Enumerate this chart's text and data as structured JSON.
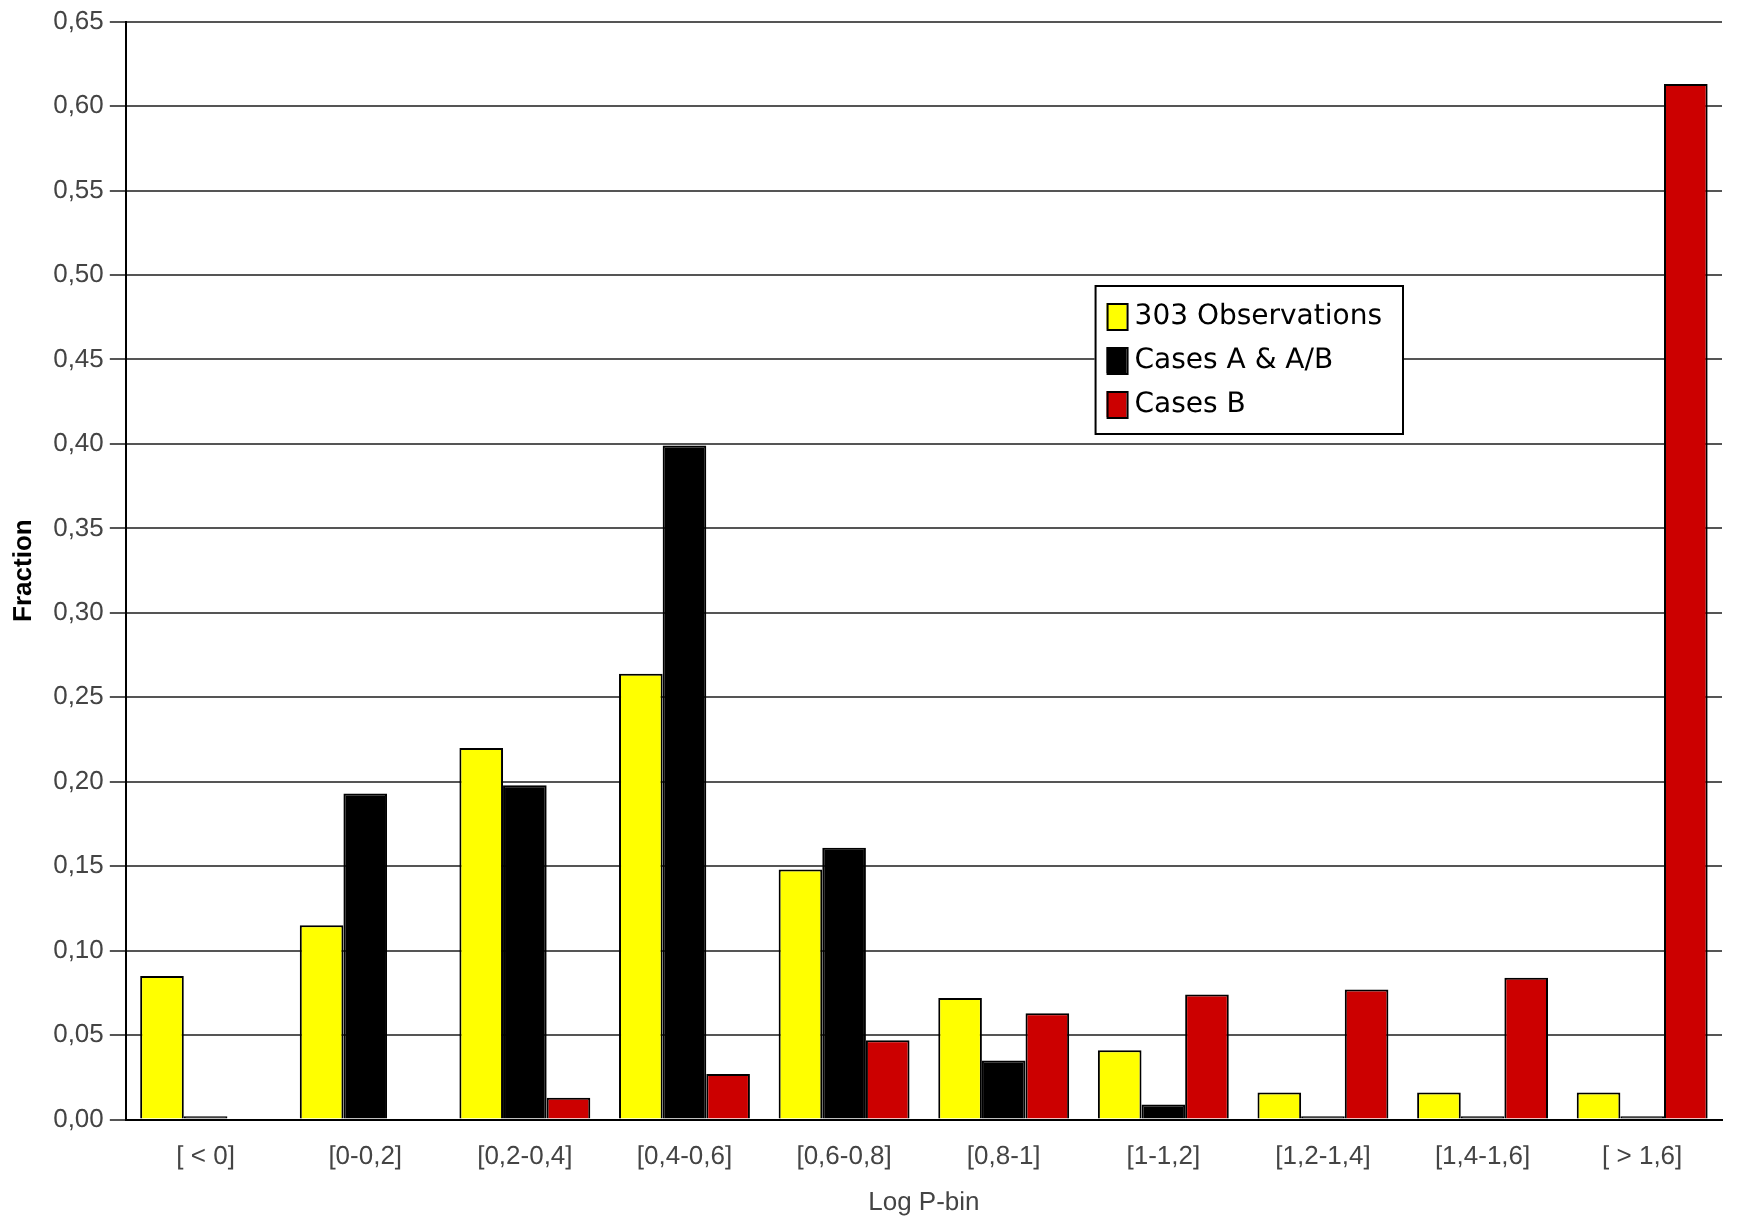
{
  "chart_data": {
    "type": "bar",
    "xlabel": "Log P-bin",
    "ylabel": "Fraction",
    "categories": [
      "[ < 0]",
      "[0-0,2]",
      "[0,2-0,4]",
      "[0,4-0,6]",
      "[0,6-0,8]",
      "[0,8-1]",
      "[1-1,2]",
      "[1,2-1,4]",
      "[1,4-1,6]",
      "[ > 1,6]"
    ],
    "series": [
      {
        "name": "303 Observations",
        "color": "#ffff00",
        "values": [
          0.085,
          0.115,
          0.22,
          0.264,
          0.148,
          0.072,
          0.041,
          0.016,
          0.016,
          0.016
        ]
      },
      {
        "name": "Cases A & A/B",
        "color": "#000000",
        "values": [
          0.002,
          0.193,
          0.198,
          0.399,
          0.161,
          0.035,
          0.009,
          0.002,
          0.002,
          0.002
        ]
      },
      {
        "name": "Cases B",
        "color": "#cc0000",
        "values": [
          0,
          0,
          0.013,
          0.027,
          0.047,
          0.063,
          0.074,
          0.077,
          0.084,
          0.613
        ]
      }
    ],
    "ylim": [
      0,
      0.65
    ],
    "yticks": [
      {
        "value": 0,
        "label": "0,00"
      },
      {
        "value": 0.05,
        "label": "0,05"
      },
      {
        "value": 0.1,
        "label": "0,10"
      },
      {
        "value": 0.15,
        "label": "0,15"
      },
      {
        "value": 0.2,
        "label": "0,20"
      },
      {
        "value": 0.25,
        "label": "0,25"
      },
      {
        "value": 0.3,
        "label": "0,30"
      },
      {
        "value": 0.35,
        "label": "0,35"
      },
      {
        "value": 0.4,
        "label": "0,40"
      },
      {
        "value": 0.45,
        "label": "0,45"
      },
      {
        "value": 0.5,
        "label": "0,50"
      },
      {
        "value": 0.55,
        "label": "0,55"
      },
      {
        "value": 0.6,
        "label": "0,60"
      },
      {
        "value": 0.65,
        "label": "0,65"
      }
    ],
    "grid": "y",
    "legend": "right"
  }
}
